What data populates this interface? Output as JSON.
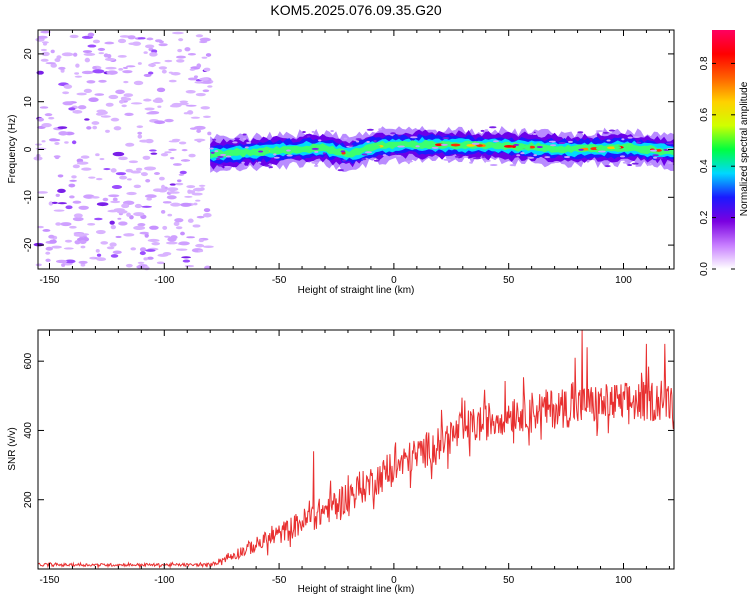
{
  "title": "KOM5.2025.076.09.35.G20",
  "chart_data": [
    {
      "type": "heatmap",
      "xlabel": "Height of straight line (km)",
      "ylabel": "Frequency (Hz)",
      "xlim": [
        -155,
        122
      ],
      "ylim": [
        -25,
        25
      ],
      "xticks": [
        -150,
        -100,
        -50,
        0,
        50,
        100
      ],
      "yticks": [
        -20,
        -10,
        0,
        10,
        20
      ],
      "noise_region_x": [
        -155,
        -80
      ],
      "signal_start_x": -80,
      "signal_center_freq": [
        {
          "x": -80,
          "y": -1.0
        },
        {
          "x": -60,
          "y": -0.5
        },
        {
          "x": -45,
          "y": 0.0
        },
        {
          "x": -30,
          "y": 0.3
        },
        {
          "x": -20,
          "y": -1.0
        },
        {
          "x": -10,
          "y": 0.5
        },
        {
          "x": 0,
          "y": 1.0
        },
        {
          "x": 20,
          "y": 1.0
        },
        {
          "x": 40,
          "y": 0.8
        },
        {
          "x": 60,
          "y": 0.5
        },
        {
          "x": 80,
          "y": 0.0
        },
        {
          "x": 100,
          "y": 0.5
        },
        {
          "x": 122,
          "y": -0.5
        }
      ],
      "colorbar": {
        "label": "Normalized spectral amplitude",
        "ticks": [
          0.0,
          0.2,
          0.4,
          0.6,
          0.8
        ],
        "tick_labels": [
          "0.0",
          "0.2",
          "0.4",
          "0.6",
          "0.8"
        ],
        "range": [
          0,
          0.93
        ],
        "colors": [
          "#ffffff",
          "#c77dff",
          "#7a00e0",
          "#1a1aff",
          "#00d8ff",
          "#00ff40",
          "#d0ff00",
          "#ffd000",
          "#ff6000",
          "#ff0000",
          "#ff0060"
        ]
      },
      "grid": false
    },
    {
      "type": "line",
      "xlabel": "Height of straight line (km)",
      "ylabel": "SNR (v/v)",
      "xlim": [
        -155,
        122
      ],
      "ylim": [
        0,
        690
      ],
      "xticks": [
        -150,
        -100,
        -50,
        0,
        50,
        100
      ],
      "yticks": [
        200,
        400,
        600
      ],
      "line_color": "#e83030",
      "trend": [
        {
          "x": -155,
          "y": 12
        },
        {
          "x": -80,
          "y": 12
        },
        {
          "x": -70,
          "y": 40
        },
        {
          "x": -50,
          "y": 100
        },
        {
          "x": -30,
          "y": 170
        },
        {
          "x": -10,
          "y": 250
        },
        {
          "x": 10,
          "y": 330
        },
        {
          "x": 30,
          "y": 400
        },
        {
          "x": 50,
          "y": 450
        },
        {
          "x": 80,
          "y": 470
        },
        {
          "x": 100,
          "y": 480
        },
        {
          "x": 122,
          "y": 490
        }
      ],
      "noise": [
        {
          "x": -155,
          "y": 4
        },
        {
          "x": -80,
          "y": 4
        },
        {
          "x": -70,
          "y": 15
        },
        {
          "x": -50,
          "y": 30
        },
        {
          "x": -30,
          "y": 45
        },
        {
          "x": 0,
          "y": 50
        },
        {
          "x": 40,
          "y": 55
        },
        {
          "x": 80,
          "y": 60
        },
        {
          "x": 122,
          "y": 60
        }
      ],
      "spikes": [
        {
          "x": -35,
          "y": 340
        },
        {
          "x": 82,
          "y": 690
        },
        {
          "x": 84,
          "y": 640
        },
        {
          "x": 79,
          "y": 610
        },
        {
          "x": 110,
          "y": 650
        },
        {
          "x": 118,
          "y": 650
        }
      ],
      "grid": false
    }
  ]
}
